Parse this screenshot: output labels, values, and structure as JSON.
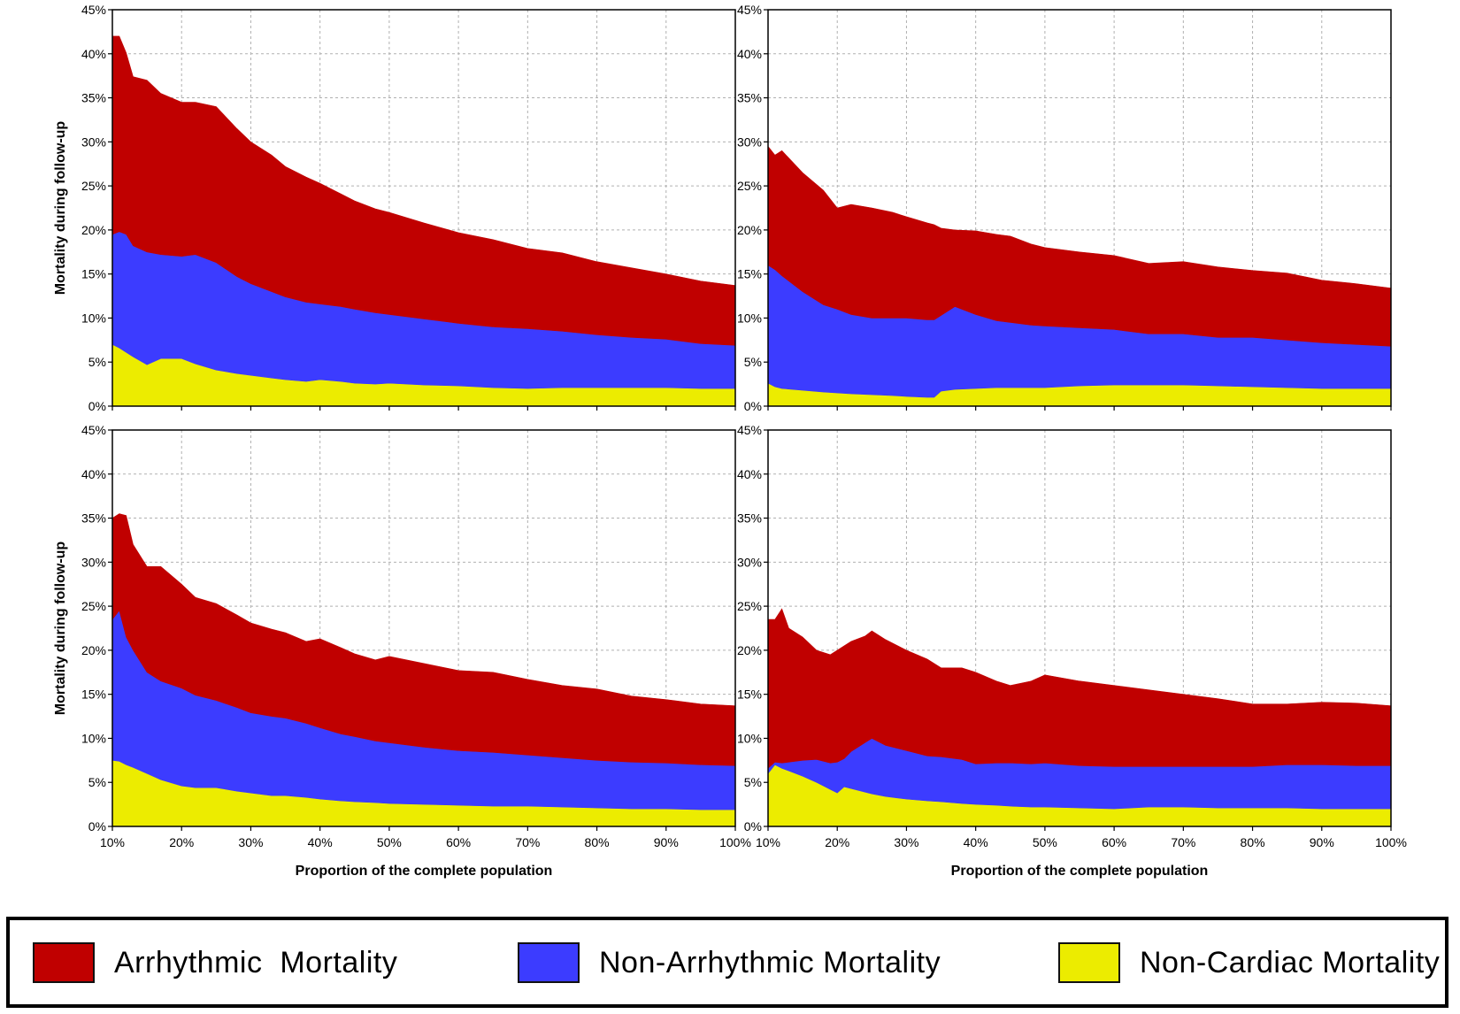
{
  "chart_data": [
    {
      "type": "area",
      "stacked": true,
      "ylabel": "Mortality during follow-up",
      "xlabel": "",
      "x": [
        10,
        11,
        12,
        13,
        15,
        17,
        20,
        22,
        25,
        28,
        30,
        33,
        35,
        38,
        40,
        43,
        45,
        48,
        50,
        55,
        60,
        65,
        70,
        75,
        80,
        85,
        90,
        95,
        100
      ],
      "series": [
        {
          "name": "Non-Cardiac Mortality",
          "values": [
            7.0,
            6.6,
            6.1,
            5.6,
            4.7,
            5.4,
            5.4,
            4.8,
            4.1,
            3.7,
            3.5,
            3.2,
            3.0,
            2.8,
            3.0,
            2.8,
            2.6,
            2.5,
            2.6,
            2.4,
            2.3,
            2.1,
            2.0,
            2.1,
            2.1,
            2.1,
            2.1,
            2.0,
            2.0
          ]
        },
        {
          "name": "Non-Arrhythmic Mortality",
          "values": [
            12.5,
            13.2,
            13.4,
            12.6,
            12.8,
            11.8,
            11.6,
            12.4,
            12.2,
            11.0,
            10.4,
            9.8,
            9.4,
            9.0,
            8.6,
            8.5,
            8.4,
            8.1,
            7.8,
            7.5,
            7.1,
            6.9,
            6.8,
            6.4,
            6.0,
            5.7,
            5.5,
            5.1,
            4.9
          ]
        },
        {
          "name": "Arrhythmic Mortality",
          "values": [
            22.5,
            22.2,
            20.6,
            19.2,
            19.5,
            18.3,
            17.5,
            17.3,
            17.7,
            16.8,
            16.1,
            15.5,
            14.8,
            14.2,
            13.7,
            12.8,
            12.3,
            11.8,
            11.6,
            10.9,
            10.3,
            9.9,
            9.1,
            8.9,
            8.3,
            7.9,
            7.4,
            7.1,
            6.8
          ]
        }
      ],
      "xlim": [
        10,
        100
      ],
      "ylim": [
        0,
        45
      ]
    },
    {
      "type": "area",
      "stacked": true,
      "ylabel": "",
      "xlabel": "",
      "x": [
        10,
        11,
        12,
        15,
        18,
        20,
        22,
        25,
        28,
        30,
        33,
        34,
        35,
        37,
        40,
        43,
        45,
        48,
        50,
        55,
        60,
        65,
        70,
        75,
        80,
        85,
        90,
        95,
        100
      ],
      "series": [
        {
          "name": "Non-Cardiac Mortality",
          "values": [
            2.6,
            2.2,
            2.0,
            1.8,
            1.6,
            1.5,
            1.4,
            1.3,
            1.2,
            1.1,
            1.0,
            1.0,
            1.7,
            1.9,
            2.0,
            2.1,
            2.1,
            2.1,
            2.1,
            2.3,
            2.4,
            2.4,
            2.4,
            2.3,
            2.2,
            2.1,
            2.0,
            2.0,
            2.0
          ]
        },
        {
          "name": "Non-Arrhythmic Mortality",
          "values": [
            13.4,
            13.3,
            12.8,
            11.2,
            9.9,
            9.5,
            9.0,
            8.7,
            8.8,
            8.9,
            8.8,
            8.8,
            8.6,
            9.4,
            8.4,
            7.6,
            7.4,
            7.1,
            7.0,
            6.6,
            6.3,
            5.8,
            5.8,
            5.5,
            5.6,
            5.4,
            5.2,
            5.0,
            4.8
          ]
        },
        {
          "name": "Arrhythmic Mortality",
          "values": [
            13.5,
            13.0,
            14.2,
            13.5,
            13.0,
            11.5,
            12.5,
            12.5,
            12.0,
            11.5,
            11.0,
            10.8,
            9.9,
            8.7,
            9.5,
            9.8,
            9.8,
            9.2,
            8.9,
            8.6,
            8.4,
            8.0,
            8.2,
            8.0,
            7.6,
            7.6,
            7.1,
            6.9,
            6.6
          ]
        }
      ],
      "xlim": [
        10,
        100
      ],
      "ylim": [
        0,
        45
      ]
    },
    {
      "type": "area",
      "stacked": true,
      "ylabel": "Mortality during follow-up",
      "xlabel": "Proportion of the complete population",
      "x": [
        10,
        11,
        12,
        13,
        15,
        17,
        20,
        22,
        25,
        28,
        30,
        33,
        35,
        38,
        40,
        43,
        45,
        48,
        50,
        55,
        60,
        65,
        70,
        75,
        80,
        85,
        90,
        95,
        100
      ],
      "series": [
        {
          "name": "Non-Cardiac Mortality",
          "values": [
            7.5,
            7.4,
            7.0,
            6.7,
            6.0,
            5.3,
            4.6,
            4.4,
            4.4,
            4.0,
            3.8,
            3.5,
            3.5,
            3.3,
            3.1,
            2.9,
            2.8,
            2.7,
            2.6,
            2.5,
            2.4,
            2.3,
            2.3,
            2.2,
            2.1,
            2.0,
            2.0,
            1.9,
            1.9
          ]
        },
        {
          "name": "Non-Arrhythmic Mortality",
          "values": [
            16.0,
            17.1,
            14.5,
            13.3,
            11.5,
            11.2,
            11.1,
            10.5,
            9.9,
            9.5,
            9.1,
            9.0,
            8.8,
            8.4,
            8.1,
            7.6,
            7.4,
            7.0,
            6.9,
            6.5,
            6.2,
            6.1,
            5.8,
            5.6,
            5.4,
            5.3,
            5.2,
            5.1,
            5.0
          ]
        },
        {
          "name": "Arrhythmic Mortality",
          "values": [
            11.5,
            11.0,
            13.8,
            12.0,
            12.0,
            13.0,
            11.8,
            11.1,
            11.0,
            10.5,
            10.2,
            9.9,
            9.7,
            9.3,
            10.1,
            9.8,
            9.4,
            9.2,
            9.8,
            9.5,
            9.1,
            9.1,
            8.6,
            8.2,
            8.1,
            7.5,
            7.2,
            6.9,
            6.8
          ]
        }
      ],
      "xlim": [
        10,
        100
      ],
      "ylim": [
        0,
        45
      ]
    },
    {
      "type": "area",
      "stacked": true,
      "ylabel": "",
      "xlabel": "Proportion of the complete population",
      "x": [
        10,
        11,
        12,
        13,
        15,
        17,
        19,
        20,
        21,
        22,
        24,
        25,
        27,
        30,
        33,
        35,
        38,
        40,
        43,
        45,
        48,
        50,
        55,
        60,
        65,
        70,
        75,
        80,
        85,
        90,
        95,
        100
      ],
      "series": [
        {
          "name": "Non-Cardiac Mortality",
          "values": [
            6.0,
            7.0,
            6.6,
            6.3,
            5.7,
            5.0,
            4.2,
            3.8,
            4.5,
            4.3,
            3.9,
            3.7,
            3.4,
            3.1,
            2.9,
            2.8,
            2.6,
            2.5,
            2.4,
            2.3,
            2.2,
            2.2,
            2.1,
            2.0,
            2.2,
            2.2,
            2.1,
            2.1,
            2.1,
            2.0,
            2.0,
            2.0
          ]
        },
        {
          "name": "Non-Arrhythmic Mortality",
          "values": [
            0.6,
            0.3,
            0.6,
            1.0,
            1.8,
            2.6,
            3.0,
            3.5,
            3.2,
            4.2,
            5.6,
            6.3,
            5.8,
            5.5,
            5.1,
            5.1,
            5.0,
            4.6,
            4.8,
            4.9,
            4.9,
            5.0,
            4.8,
            4.8,
            4.6,
            4.6,
            4.7,
            4.7,
            4.9,
            5.0,
            4.9,
            4.9
          ]
        },
        {
          "name": "Arrhythmic Mortality",
          "values": [
            16.9,
            16.2,
            17.5,
            15.2,
            14.0,
            12.4,
            12.3,
            12.7,
            12.8,
            12.5,
            12.1,
            12.2,
            12.0,
            11.4,
            11.0,
            10.1,
            10.4,
            10.4,
            9.3,
            8.8,
            9.4,
            10.0,
            9.6,
            9.2,
            8.7,
            8.2,
            7.7,
            7.1,
            6.9,
            7.1,
            7.1,
            6.8
          ]
        }
      ],
      "xlim": [
        10,
        100
      ],
      "ylim": [
        0,
        45
      ]
    }
  ],
  "axes": {
    "y_ticks": [
      "0%",
      "5%",
      "10%",
      "15%",
      "20%",
      "25%",
      "30%",
      "35%",
      "40%",
      "45%"
    ],
    "x_ticks": [
      "10%",
      "20%",
      "30%",
      "40%",
      "50%",
      "60%",
      "70%",
      "80%",
      "90%",
      "100%"
    ]
  },
  "colors": {
    "arrhythmic": "#c00000",
    "non_arrhythmic": "#3c3cff",
    "non_cardiac": "#ecec00",
    "grid": "#b0b0b0"
  },
  "legend": {
    "items": [
      {
        "label": "Arrhythmic  Mortality",
        "color": "#c00000"
      },
      {
        "label": "Non-Arrhythmic Mortality",
        "color": "#3c3cff"
      },
      {
        "label": "Non-Cardiac Mortality",
        "color": "#ecec00"
      }
    ]
  }
}
